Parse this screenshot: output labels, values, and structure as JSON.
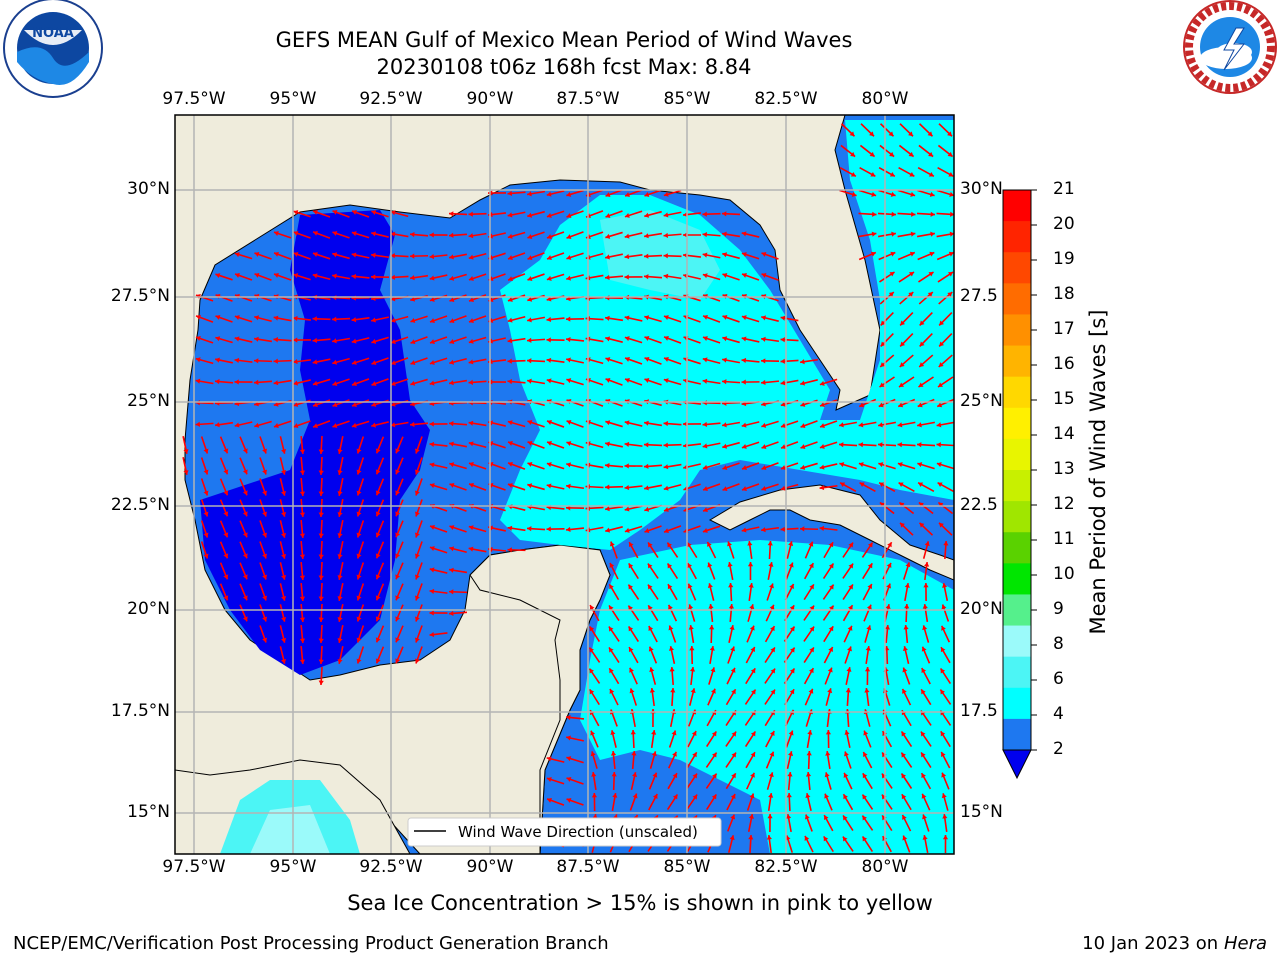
{
  "header": {
    "title_line1": "GEFS MEAN Gulf of Mexico Mean Period of Wind Waves",
    "title_line2": "20230108 t06z 168h fcst   Max: 8.84"
  },
  "logos": {
    "left_text": "NOAA",
    "left_ring_text": "NATIONAL OCEANIC AND ATMOSPHERIC ADMINISTRATION · U.S. DEPARTMENT OF COMMERCE",
    "right_ring_text": "NATIONAL WEATHER SERVICE"
  },
  "map": {
    "lon_labels": [
      "97.5°W",
      "95°W",
      "92.5°W",
      "90°W",
      "87.5°W",
      "85°W",
      "82.5°W",
      "80°W"
    ],
    "lat_labels": [
      "30°N",
      "27.5°N",
      "25°N",
      "22.5°N",
      "20°N",
      "17.5°N",
      "15°N"
    ],
    "lat_labels_right": [
      "30°N",
      "27.5",
      "25°N",
      "22.5",
      "20°N",
      "17.5",
      "15°N"
    ],
    "legend_label": "Wind Wave Direction (unscaled)",
    "colors": {
      "land": "#efecdc",
      "band_2_4": "#1e78f0",
      "band_below_2": "#0000ee",
      "band_4_6": "#00ffff",
      "band_6_8": "#4cf5f5",
      "band_8_9": "#9bfafa",
      "arrow": "#ff0000",
      "grid": "#b4b4b4"
    }
  },
  "colorbar": {
    "label": "Mean Period of Wind Waves [s]",
    "ticks": [
      "21",
      "20",
      "19",
      "18",
      "17",
      "16",
      "15",
      "14",
      "13",
      "12",
      "11",
      "10",
      "9",
      "8",
      "6",
      "4",
      "2"
    ],
    "colors": [
      "#ff0000",
      "#ff2400",
      "#ff4800",
      "#ff6c00",
      "#ff9000",
      "#ffb400",
      "#ffd800",
      "#fff000",
      "#e8f500",
      "#c8f000",
      "#a0e600",
      "#5ad200",
      "#00e600",
      "#55f08c",
      "#9bfafa",
      "#4cf5f5",
      "#00ffff",
      "#1e78f0"
    ],
    "extend_color": "#0000ee"
  },
  "footer": {
    "sea_ice_note": "Sea Ice Concentration > 15% is shown in pink to yellow",
    "credit": "NCEP/EMC/Verification Post Processing Product Generation Branch",
    "date_prefix": "10 Jan 2023 on ",
    "date_host": "Hera"
  }
}
